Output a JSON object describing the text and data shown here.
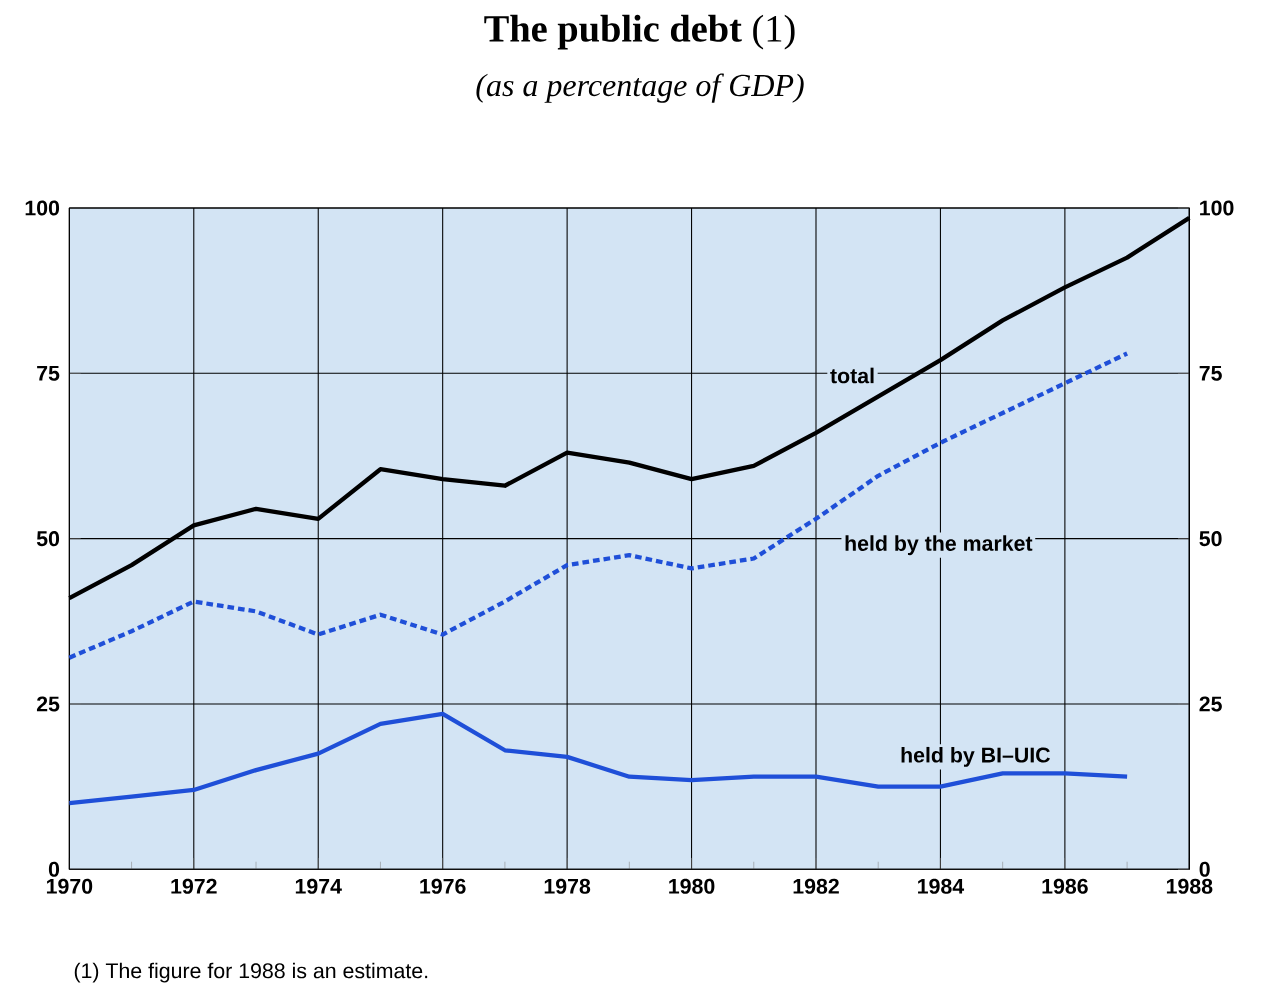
{
  "chart_data": {
    "type": "line",
    "title": "**The public debt** (1)",
    "subtitle": "(as a percentage of GDP)",
    "annotations": [
      "(1) The figure for 1988 is an estimate."
    ],
    "xlim": [
      1970,
      1988
    ],
    "xticks": [
      1970,
      1972,
      1974,
      1976,
      1978,
      1980,
      1982,
      1984,
      1986,
      1988
    ],
    "ylim": [
      0,
      100
    ],
    "yticks": [
      0,
      25,
      50,
      75,
      100
    ],
    "y2lim": [
      0,
      100
    ],
    "y2ticks": [
      0,
      25,
      50,
      75,
      100
    ],
    "grid": true,
    "legend": false,
    "marker": "none",
    "series": [
      {
        "name": "total",
        "color": "#000000",
        "line_style": "solid",
        "x": [
          1970,
          1971,
          1972,
          1973,
          1974,
          1975,
          1976,
          1977,
          1978,
          1979,
          1980,
          1981,
          1982,
          1983,
          1984,
          1985,
          1986,
          1987,
          1988
        ],
        "values": [
          41,
          46,
          52,
          54.5,
          53,
          60.5,
          59,
          58,
          63,
          61.5,
          59,
          61,
          66,
          71.5,
          77,
          83,
          88,
          92.5,
          98.5
        ]
      },
      {
        "name": "held by the market",
        "color": "#1f4fd8",
        "line_style": "dotted",
        "x": [
          1970,
          1971,
          1972,
          1973,
          1974,
          1975,
          1976,
          1977,
          1978,
          1979,
          1980,
          1981,
          1982,
          1983,
          1984,
          1985,
          1986,
          1987
        ],
        "values": [
          32,
          36,
          40.5,
          39,
          35.5,
          38.5,
          35.5,
          40.5,
          46,
          47.5,
          45.5,
          47,
          53,
          59.5,
          64.5,
          69,
          73.5,
          78
        ]
      },
      {
        "name": "held by BI–UIC",
        "color": "#1f4fd8",
        "line_style": "solid",
        "x": [
          1970,
          1971,
          1972,
          1973,
          1974,
          1975,
          1976,
          1977,
          1978,
          1979,
          1980,
          1981,
          1982,
          1983,
          1984,
          1985,
          1986,
          1987
        ],
        "values": [
          10,
          11,
          12,
          15,
          17.5,
          22,
          23.5,
          18,
          17,
          14,
          13.5,
          14,
          14,
          12.5,
          12.5,
          14.5,
          14.5,
          14
        ]
      }
    ]
  }
}
